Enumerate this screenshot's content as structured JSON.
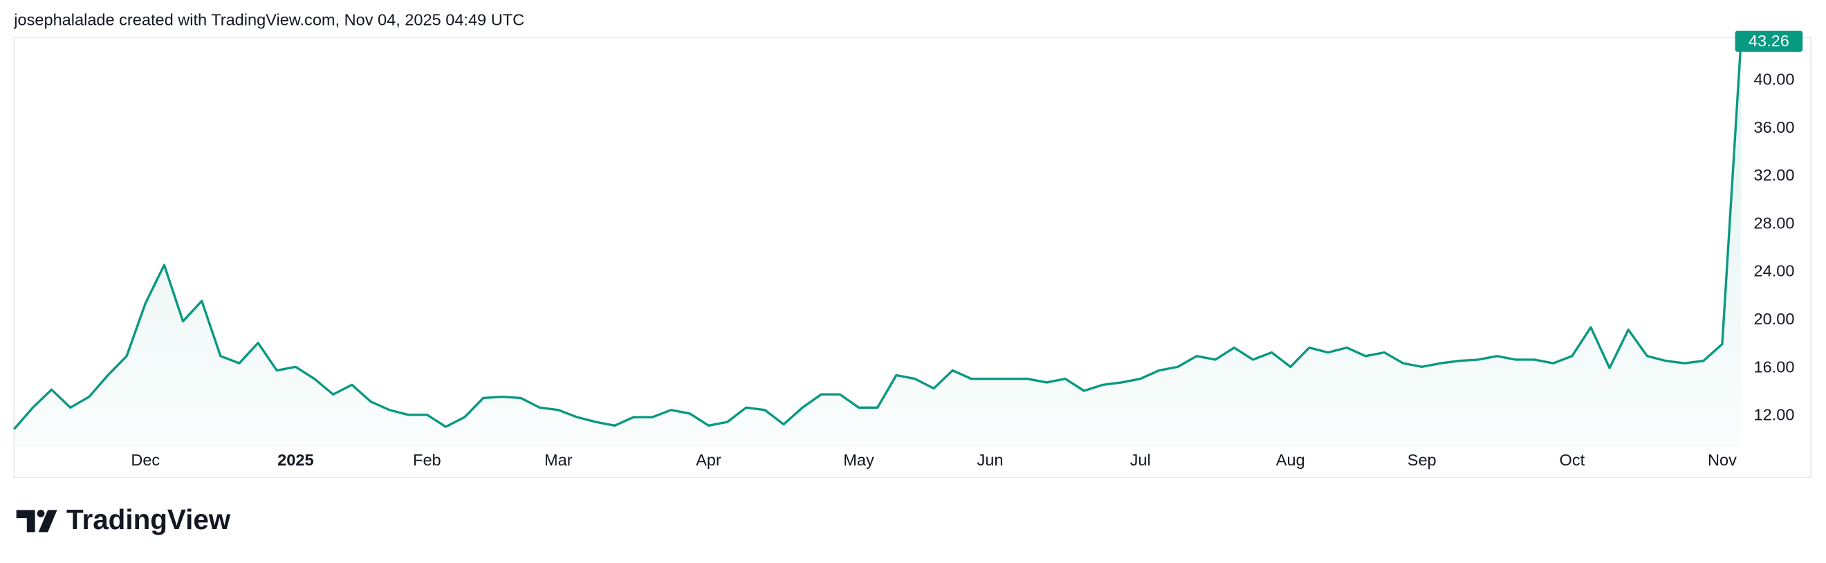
{
  "chart_data": {
    "type": "line",
    "title": "josephalalade created with TradingView.com, Nov 04, 2025 04:49 UTC",
    "logo": "TradingView",
    "color": "#089981",
    "categories": [
      null,
      null,
      null,
      null,
      null,
      null,
      null,
      "Dec",
      null,
      null,
      null,
      null,
      null,
      null,
      null,
      "2025",
      null,
      null,
      null,
      null,
      null,
      null,
      "Feb",
      null,
      null,
      null,
      null,
      null,
      null,
      "Mar",
      null,
      null,
      null,
      null,
      null,
      null,
      null,
      "Apr",
      null,
      null,
      null,
      null,
      null,
      null,
      null,
      "May",
      null,
      null,
      null,
      null,
      null,
      null,
      "Jun",
      null,
      null,
      null,
      null,
      null,
      null,
      null,
      "Jul",
      null,
      null,
      null,
      null,
      null,
      null,
      null,
      "Aug",
      null,
      null,
      null,
      null,
      null,
      null,
      "Sep",
      null,
      null,
      null,
      null,
      null,
      null,
      null,
      "Oct",
      null,
      null,
      null,
      null,
      null,
      null,
      null,
      "Nov",
      null
    ],
    "values": [
      10.9,
      12.7,
      14.2,
      12.7,
      13.6,
      15.4,
      17.0,
      21.4,
      24.6,
      19.9,
      21.6,
      17.0,
      16.4,
      18.1,
      15.8,
      16.1,
      15.1,
      13.8,
      14.6,
      13.2,
      12.5,
      12.1,
      12.1,
      11.1,
      11.9,
      13.5,
      13.6,
      13.5,
      12.7,
      12.5,
      11.9,
      11.5,
      11.2,
      11.9,
      11.9,
      12.5,
      12.2,
      11.2,
      11.5,
      12.7,
      12.5,
      11.3,
      12.7,
      13.8,
      13.8,
      12.7,
      12.7,
      15.4,
      15.1,
      14.3,
      15.8,
      15.1,
      15.1,
      15.1,
      15.1,
      14.8,
      15.1,
      14.1,
      14.6,
      14.8,
      15.1,
      15.8,
      16.1,
      17.0,
      16.7,
      17.7,
      16.7,
      17.3,
      16.1,
      17.7,
      17.3,
      17.7,
      17.0,
      17.3,
      16.4,
      16.1,
      16.4,
      16.6,
      16.7,
      17.0,
      16.7,
      16.7,
      16.4,
      17.0,
      19.4,
      16.0,
      19.2,
      17.0,
      16.6,
      16.4,
      16.6,
      18.0,
      43.26
    ],
    "ylim": [
      9.4,
      43.6
    ],
    "yticks": [
      {
        "value": 12,
        "label": "12.00"
      },
      {
        "value": 16,
        "label": "16.00"
      },
      {
        "value": 20,
        "label": "20.00"
      },
      {
        "value": 24,
        "label": "24.00"
      },
      {
        "value": 28,
        "label": "28.00"
      },
      {
        "value": 32,
        "label": "32.00"
      },
      {
        "value": 36,
        "label": "36.00"
      },
      {
        "value": 40,
        "label": "40.00"
      }
    ],
    "bold_categories": [
      "2025"
    ]
  }
}
